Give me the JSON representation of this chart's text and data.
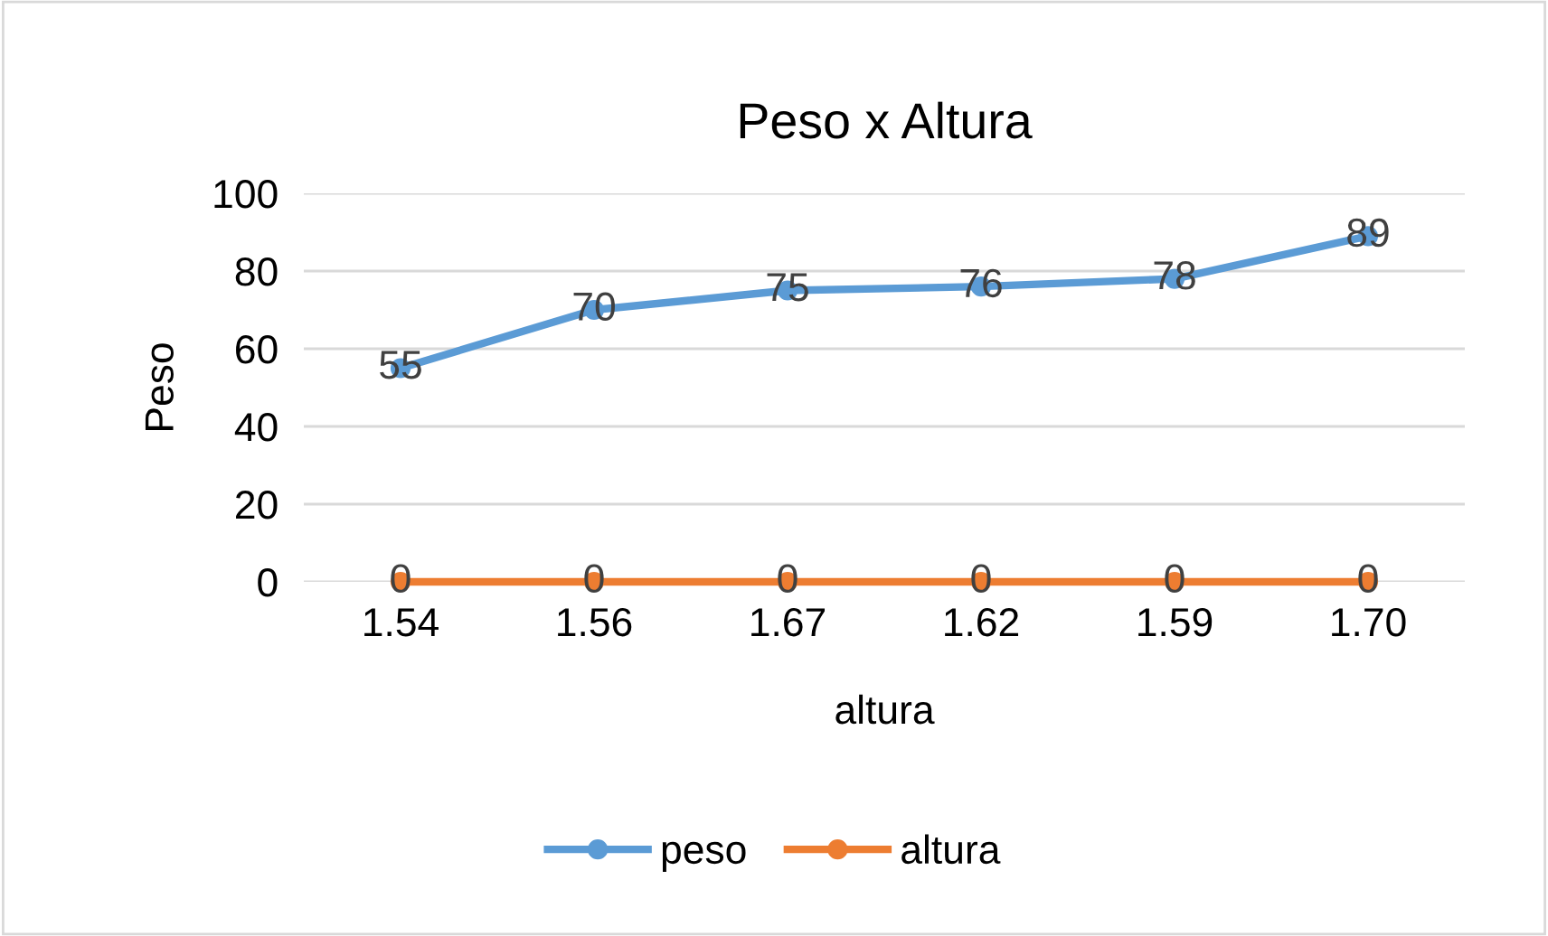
{
  "chart_data": {
    "type": "line",
    "title": "Peso x Altura",
    "xlabel": "altura",
    "ylabel": "Peso",
    "categories": [
      "1.54",
      "1.56",
      "1.67",
      "1.62",
      "1.59",
      "1.70"
    ],
    "series": [
      {
        "name": "peso",
        "color": "#5b9bd5",
        "values": [
          55,
          70,
          75,
          76,
          78,
          89
        ]
      },
      {
        "name": "altura",
        "color": "#ed7d31",
        "values": [
          0,
          0,
          0,
          0,
          0,
          0
        ]
      }
    ],
    "ylim": [
      0,
      100
    ],
    "yticks": [
      0,
      20,
      40,
      60,
      80,
      100
    ],
    "grid": "y",
    "legend": "bottom",
    "marker": "circle",
    "line_style": "solid",
    "data_labels": true
  }
}
